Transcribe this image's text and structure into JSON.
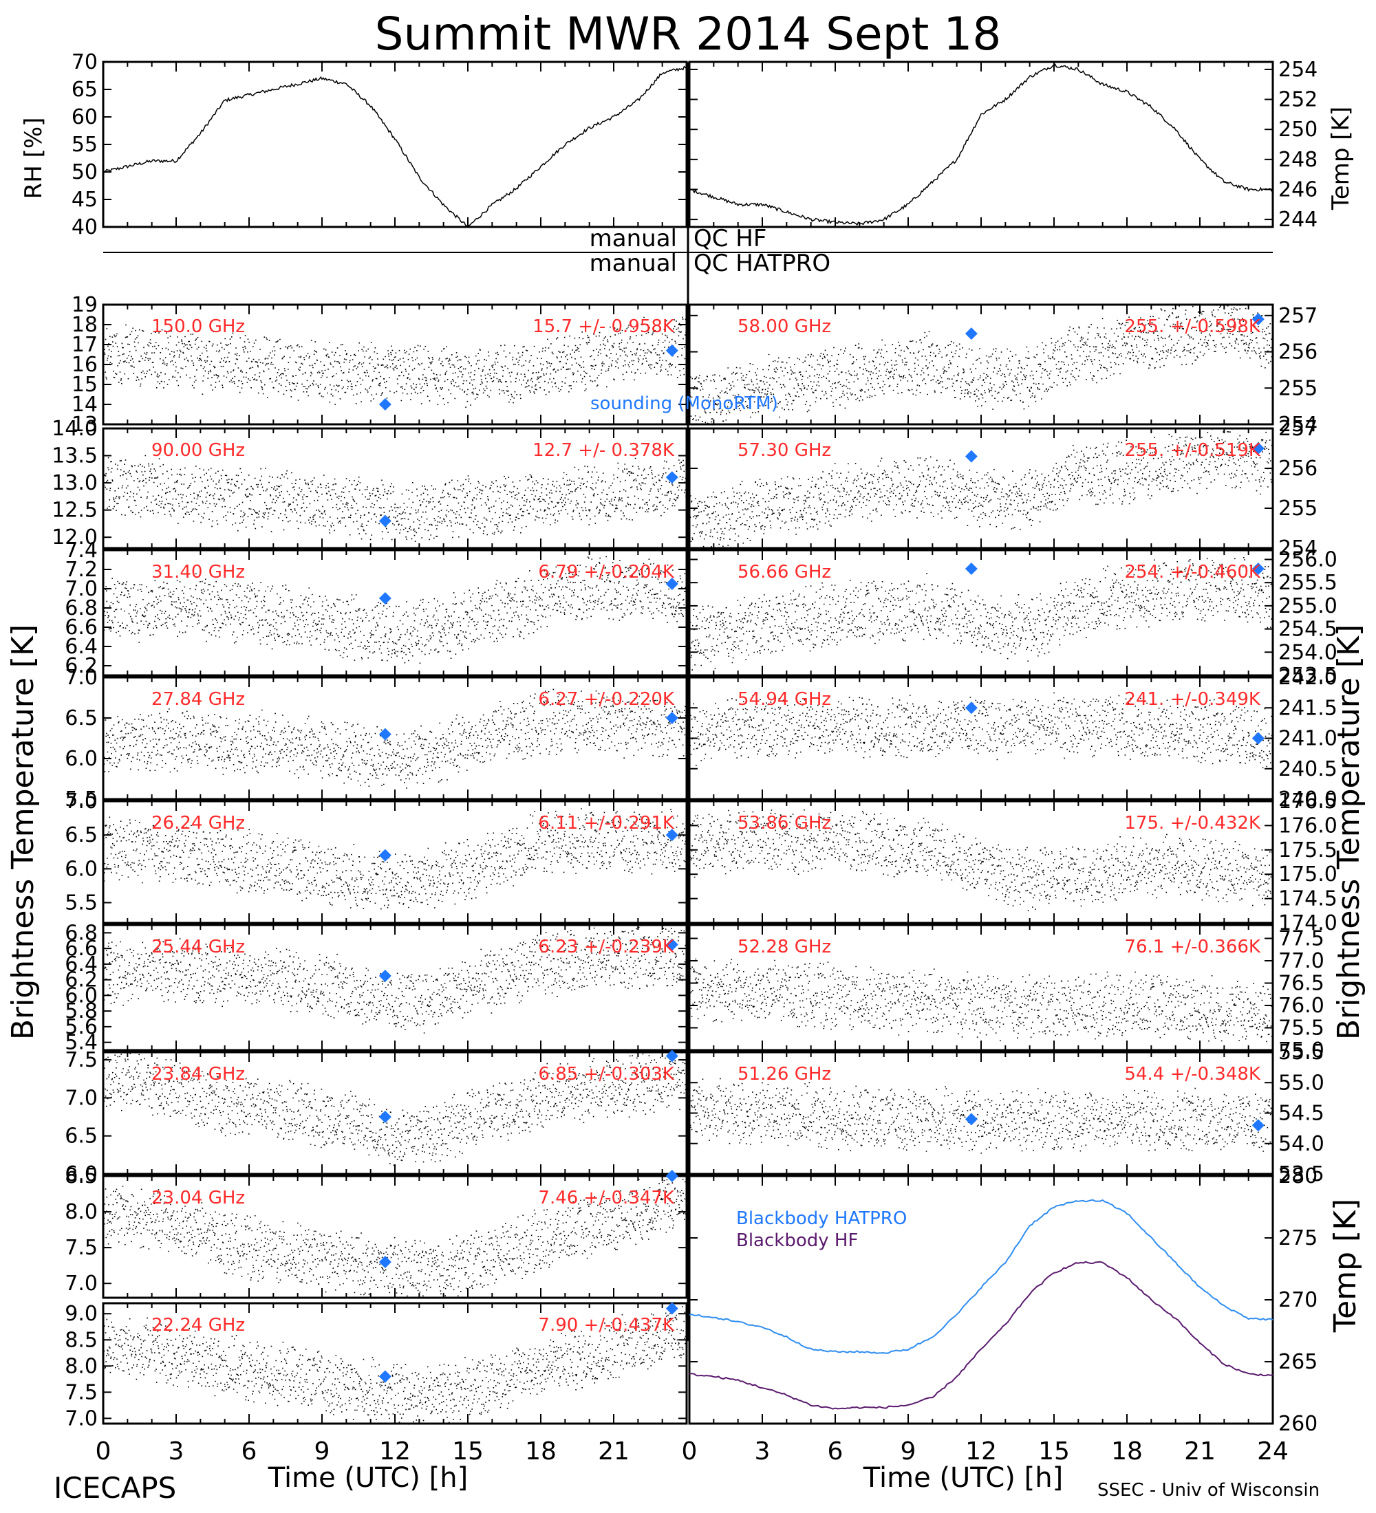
{
  "title": "Summit MWR 2014 Sept 18",
  "footer_left": "ICECAPS",
  "footer_right": "SSEC - Univ of Wisconsin",
  "colors": {
    "data": "#000000",
    "channel_label": "#ff2a2a",
    "sounding": "#1f78ff",
    "bb_hatpro": "#2f8df0",
    "bb_hf": "#5a1a6e"
  },
  "labels": {
    "rh_axis": "RH [%]",
    "temp_axis": "Temp [K]",
    "tb_axis": "Brightness Temperature [K]",
    "bb_axis": "Temp [K]",
    "x_axis": "Time (UTC) [h]",
    "qc_manual": "manual",
    "qc_hf": "QC HF",
    "qc_hatpro": "QC HATPRO",
    "sounding": "sounding (MonoRTM)",
    "bb_hatpro": "Blackbody HATPRO",
    "bb_hf": "Blackbody HF"
  },
  "chart_data": [
    {
      "type": "line",
      "name": "RH",
      "ylabel": "RH [%]",
      "xlim": [
        0,
        24
      ],
      "ylim": [
        40,
        70
      ],
      "yticks": [
        "40",
        "45",
        "50",
        "55",
        "60",
        "65",
        "70"
      ],
      "x": [
        0,
        1,
        2,
        3,
        4,
        5,
        6,
        7,
        8,
        9,
        10,
        11,
        12,
        13,
        14,
        15,
        16,
        17,
        18,
        19,
        20,
        21,
        22,
        23,
        24
      ],
      "values": [
        50,
        51,
        52,
        52,
        57,
        63,
        64,
        65,
        66,
        67,
        66,
        62,
        56,
        49,
        44,
        40,
        44,
        47,
        51,
        55,
        58,
        60,
        63,
        68,
        69
      ]
    },
    {
      "type": "line",
      "name": "Temp",
      "ylabel": "Temp [K]",
      "xlim": [
        0,
        24
      ],
      "ylim": [
        243.5,
        254.5
      ],
      "yticks": [
        "244",
        "246",
        "248",
        "250",
        "252",
        "254"
      ],
      "x": [
        0,
        1,
        2,
        3,
        4,
        5,
        6,
        7,
        8,
        9,
        10,
        11,
        12,
        13,
        14,
        15,
        16,
        17,
        18,
        19,
        20,
        21,
        22,
        23,
        24
      ],
      "values": [
        246,
        245.5,
        245,
        245,
        244.5,
        244,
        243.8,
        243.7,
        244,
        245,
        246.5,
        248,
        251,
        252,
        253.5,
        254.3,
        254,
        253,
        252.5,
        251.5,
        250,
        248,
        246.5,
        246,
        246
      ]
    },
    {
      "type": "scatter",
      "side": "left",
      "label": "150.0 GHz",
      "stat": "15.7 +/- 0.958K",
      "ylim": [
        13,
        19
      ],
      "yticks": [
        "13",
        "14",
        "15",
        "16",
        "17",
        "18",
        "19"
      ],
      "x": [
        0,
        2,
        4,
        6,
        8,
        10,
        12,
        14,
        16,
        18,
        20,
        22,
        24
      ],
      "values": [
        16.5,
        16.4,
        16.2,
        16.0,
        15.8,
        15.6,
        15.5,
        15.4,
        15.5,
        15.8,
        16.2,
        16.8,
        17.0
      ],
      "sounding_x": [
        11.6,
        23.4
      ],
      "sounding_y": [
        14.0,
        16.7
      ]
    },
    {
      "type": "scatter",
      "side": "left",
      "label": "90.00 GHz",
      "stat": "12.7 +/- 0.378K",
      "ylim": [
        11.8,
        14.0
      ],
      "yticks": [
        "12.0",
        "12.5",
        "13.0",
        "13.5",
        "14.0"
      ],
      "x": [
        0,
        2,
        4,
        6,
        8,
        10,
        12,
        14,
        16,
        18,
        20,
        22,
        24
      ],
      "values": [
        13.0,
        12.9,
        12.8,
        12.7,
        12.7,
        12.6,
        12.5,
        12.5,
        12.6,
        12.7,
        12.8,
        12.9,
        13.0
      ],
      "sounding_x": [
        11.6,
        23.4
      ],
      "sounding_y": [
        12.3,
        13.1
      ]
    },
    {
      "type": "scatter",
      "side": "left",
      "label": "31.40 GHz",
      "stat": "6.79 +/-0.204K",
      "ylim": [
        6.1,
        7.4
      ],
      "yticks": [
        "6.2",
        "6.4",
        "6.6",
        "6.8",
        "7.0",
        "7.2",
        "7.4"
      ],
      "x": [
        0,
        2,
        4,
        6,
        8,
        10,
        12,
        14,
        16,
        18,
        20,
        22,
        24
      ],
      "values": [
        6.8,
        6.8,
        6.8,
        6.75,
        6.7,
        6.6,
        6.55,
        6.6,
        6.75,
        6.9,
        7.0,
        7.0,
        6.9
      ],
      "sounding_x": [
        11.6,
        23.4
      ],
      "sounding_y": [
        6.9,
        7.05
      ]
    },
    {
      "type": "scatter",
      "side": "left",
      "label": "27.84 GHz",
      "stat": "6.27 +/-0.220K",
      "ylim": [
        5.5,
        7.0
      ],
      "yticks": [
        "5.5",
        "6.0",
        "6.5",
        "7.0"
      ],
      "x": [
        0,
        2,
        4,
        6,
        8,
        10,
        12,
        14,
        16,
        18,
        20,
        22,
        24
      ],
      "values": [
        6.2,
        6.25,
        6.2,
        6.2,
        6.15,
        6.1,
        6.0,
        6.1,
        6.3,
        6.45,
        6.45,
        6.4,
        6.4
      ],
      "sounding_x": [
        11.6,
        23.4
      ],
      "sounding_y": [
        6.3,
        6.5
      ]
    },
    {
      "type": "scatter",
      "side": "left",
      "label": "26.24 GHz",
      "stat": "6.11 +/-0.291K",
      "ylim": [
        5.2,
        7.0
      ],
      "yticks": [
        "5.5",
        "6.0",
        "6.5",
        "7.0"
      ],
      "x": [
        0,
        2,
        4,
        6,
        8,
        10,
        12,
        14,
        16,
        18,
        20,
        22,
        24
      ],
      "values": [
        6.3,
        6.3,
        6.2,
        6.1,
        6.0,
        5.9,
        5.8,
        5.9,
        6.1,
        6.4,
        6.4,
        6.4,
        6.4
      ],
      "sounding_x": [
        11.6,
        23.4
      ],
      "sounding_y": [
        6.2,
        6.5
      ]
    },
    {
      "type": "scatter",
      "side": "left",
      "label": "25.44 GHz",
      "stat": "6.23 +/-0.239K",
      "ylim": [
        5.3,
        6.9
      ],
      "yticks": [
        "5.4",
        "5.6",
        "5.8",
        "6.0",
        "6.2",
        "6.4",
        "6.6",
        "6.8"
      ],
      "x": [
        0,
        2,
        4,
        6,
        8,
        10,
        12,
        14,
        16,
        18,
        20,
        22,
        24
      ],
      "values": [
        6.3,
        6.35,
        6.3,
        6.25,
        6.2,
        6.1,
        5.9,
        6.0,
        6.2,
        6.4,
        6.45,
        6.5,
        6.5
      ],
      "sounding_x": [
        11.6,
        23.4
      ],
      "sounding_y": [
        6.25,
        6.65
      ]
    },
    {
      "type": "scatter",
      "side": "left",
      "label": "23.84 GHz",
      "stat": "6.85 +/-0.303K",
      "ylim": [
        6.0,
        7.6
      ],
      "yticks": [
        "6.0",
        "6.5",
        "7.0",
        "7.5"
      ],
      "x": [
        0,
        2,
        4,
        6,
        8,
        10,
        12,
        14,
        16,
        18,
        20,
        22,
        24
      ],
      "values": [
        7.3,
        7.2,
        7.0,
        6.9,
        6.8,
        6.7,
        6.5,
        6.6,
        6.8,
        7.0,
        7.1,
        7.2,
        7.3
      ],
      "sounding_x": [
        11.6,
        23.4
      ],
      "sounding_y": [
        6.75,
        7.55
      ]
    },
    {
      "type": "scatter",
      "side": "left",
      "label": "23.04 GHz",
      "stat": "7.46 +/-0.347K",
      "ylim": [
        6.8,
        8.5
      ],
      "yticks": [
        "7.0",
        "7.5",
        "8.0",
        "8.5"
      ],
      "x": [
        0,
        2,
        4,
        6,
        8,
        10,
        12,
        14,
        16,
        18,
        20,
        22,
        24
      ],
      "values": [
        8.0,
        7.9,
        7.7,
        7.5,
        7.4,
        7.3,
        7.2,
        7.2,
        7.4,
        7.6,
        7.8,
        8.0,
        8.2
      ],
      "sounding_x": [
        11.6,
        23.4
      ],
      "sounding_y": [
        7.3,
        8.5
      ]
    },
    {
      "type": "scatter",
      "side": "left",
      "label": "22.24 GHz",
      "stat": "7.90 +/-0.437K",
      "ylim": [
        6.9,
        9.2
      ],
      "yticks": [
        "7.0",
        "7.5",
        "8.0",
        "8.5",
        "9.0"
      ],
      "x": [
        0,
        2,
        4,
        6,
        8,
        10,
        12,
        14,
        16,
        18,
        20,
        22,
        24
      ],
      "values": [
        8.4,
        8.3,
        8.1,
        7.9,
        7.8,
        7.6,
        7.5,
        7.5,
        7.7,
        8.0,
        8.2,
        8.5,
        8.6
      ],
      "sounding_x": [
        11.6,
        23.4
      ],
      "sounding_y": [
        7.8,
        9.1
      ]
    },
    {
      "type": "scatter",
      "side": "right",
      "label": "58.00 GHz",
      "stat": "255. +/-0.598K",
      "ylim": [
        254,
        257.3
      ],
      "yticks": [
        "254",
        "255",
        "256",
        "257"
      ],
      "x": [
        0,
        2,
        4,
        6,
        8,
        10,
        12,
        14,
        16,
        18,
        20,
        22,
        24
      ],
      "values": [
        254.6,
        254.9,
        255.1,
        255.3,
        255.5,
        255.7,
        255.3,
        255.3,
        256.0,
        256.2,
        256.4,
        256.7,
        256.3
      ],
      "sounding_x": [
        11.6,
        23.4
      ],
      "sounding_y": [
        256.5,
        256.9
      ]
    },
    {
      "type": "scatter",
      "side": "right",
      "label": "57.30 GHz",
      "stat": "255. +/-0.519K",
      "ylim": [
        254,
        257
      ],
      "yticks": [
        "254",
        "255",
        "256",
        "257"
      ],
      "x": [
        0,
        2,
        4,
        6,
        8,
        10,
        12,
        14,
        16,
        18,
        20,
        22,
        24
      ],
      "values": [
        254.7,
        254.9,
        255.1,
        255.3,
        255.5,
        255.6,
        255.3,
        255.2,
        255.9,
        255.9,
        256.1,
        256.3,
        256.1
      ],
      "sounding_x": [
        11.6,
        23.4
      ],
      "sounding_y": [
        256.3,
        256.5
      ]
    },
    {
      "type": "scatter",
      "side": "right",
      "label": "56.66 GHz",
      "stat": "254. +/-0.460K",
      "ylim": [
        253.5,
        256.2
      ],
      "yticks": [
        "253.5",
        "254.0",
        "254.5",
        "255.0",
        "255.5",
        "256.0"
      ],
      "x": [
        0,
        2,
        4,
        6,
        8,
        10,
        12,
        14,
        16,
        18,
        20,
        22,
        24
      ],
      "values": [
        254.3,
        254.5,
        254.7,
        254.8,
        254.9,
        255.0,
        254.6,
        254.5,
        255.0,
        255.2,
        255.3,
        255.4,
        255.2
      ],
      "sounding_x": [
        11.6,
        23.4
      ],
      "sounding_y": [
        255.8,
        255.8
      ]
    },
    {
      "type": "scatter",
      "side": "right",
      "label": "54.94 GHz",
      "stat": "241. +/-0.349K",
      "ylim": [
        240,
        242
      ],
      "yticks": [
        "240.0",
        "240.5",
        "241.0",
        "241.5",
        "242.0"
      ],
      "x": [
        0,
        2,
        4,
        6,
        8,
        10,
        12,
        14,
        16,
        18,
        20,
        22,
        24
      ],
      "values": [
        241.1,
        241.2,
        241.2,
        241.2,
        241.2,
        241.2,
        241.2,
        241.2,
        241.2,
        241.2,
        241.1,
        241.1,
        241.0
      ],
      "sounding_x": [
        11.6,
        23.4
      ],
      "sounding_y": [
        241.5,
        241.0
      ]
    },
    {
      "type": "scatter",
      "side": "right",
      "label": "53.86 GHz",
      "stat": "175. +/-0.432K",
      "ylim": [
        174,
        176.5
      ],
      "yticks": [
        "174.0",
        "174.5",
        "175.0",
        "175.5",
        "176.0",
        "176.5"
      ],
      "x": [
        0,
        2,
        4,
        6,
        8,
        10,
        12,
        14,
        16,
        18,
        20,
        22,
        24
      ],
      "values": [
        175.6,
        175.7,
        175.7,
        175.7,
        175.6,
        175.5,
        175.2,
        174.9,
        175.0,
        175.1,
        175.2,
        175.1,
        175.0
      ],
      "sounding_x": [],
      "sounding_y": []
    },
    {
      "type": "scatter",
      "side": "right",
      "label": "52.28 GHz",
      "stat": "76.1 +/-0.366K",
      "ylim": [
        75,
        77.8
      ],
      "yticks": [
        "75.0",
        "75.5",
        "76.0",
        "76.5",
        "77.0",
        "77.5"
      ],
      "x": [
        0,
        2,
        4,
        6,
        8,
        10,
        12,
        14,
        16,
        18,
        20,
        22,
        24
      ],
      "values": [
        76.4,
        76.3,
        76.3,
        76.2,
        76.1,
        76.1,
        76.0,
        76.0,
        76.0,
        76.0,
        76.0,
        75.9,
        75.8
      ],
      "sounding_x": [],
      "sounding_y": []
    },
    {
      "type": "scatter",
      "side": "right",
      "label": "51.26 GHz",
      "stat": "54.4 +/-0.348K",
      "ylim": [
        53.5,
        55.5
      ],
      "yticks": [
        "53.5",
        "54.0",
        "54.5",
        "55.0",
        "55.5"
      ],
      "x": [
        0,
        2,
        4,
        6,
        8,
        10,
        12,
        14,
        16,
        18,
        20,
        22,
        24
      ],
      "values": [
        54.6,
        54.5,
        54.5,
        54.4,
        54.4,
        54.4,
        54.4,
        54.4,
        54.4,
        54.4,
        54.4,
        54.4,
        54.3
      ],
      "sounding_x": [
        11.6,
        23.4
      ],
      "sounding_y": [
        54.4,
        54.3
      ]
    },
    {
      "type": "line",
      "name": "Blackbody",
      "ylabel": "Temp [K]",
      "xlim": [
        0,
        24
      ],
      "ylim": [
        260,
        280
      ],
      "yticks": [
        "260",
        "265",
        "270",
        "275",
        "280"
      ],
      "x": [
        0,
        1,
        2,
        3,
        4,
        5,
        6,
        7,
        8,
        9,
        10,
        11,
        12,
        13,
        14,
        15,
        16,
        17,
        18,
        19,
        20,
        21,
        22,
        23,
        24
      ],
      "series": [
        {
          "name": "Blackbody HATPRO",
          "values": [
            268.8,
            268.6,
            268.2,
            267.8,
            267.0,
            266.0,
            265.8,
            265.8,
            265.7,
            266.0,
            267.0,
            268.8,
            271.0,
            273.0,
            276.0,
            277.5,
            278.0,
            278.0,
            277.0,
            275.0,
            273.0,
            271.0,
            269.5,
            268.5,
            268.4
          ]
        },
        {
          "name": "Blackbody HF",
          "values": [
            264.0,
            263.8,
            263.5,
            262.9,
            262.3,
            261.5,
            261.2,
            261.3,
            261.3,
            261.5,
            262.1,
            263.8,
            266.0,
            268.0,
            270.5,
            272.2,
            273.0,
            273.0,
            271.8,
            270.0,
            268.5,
            266.5,
            264.8,
            264.0,
            263.9
          ]
        }
      ]
    }
  ]
}
